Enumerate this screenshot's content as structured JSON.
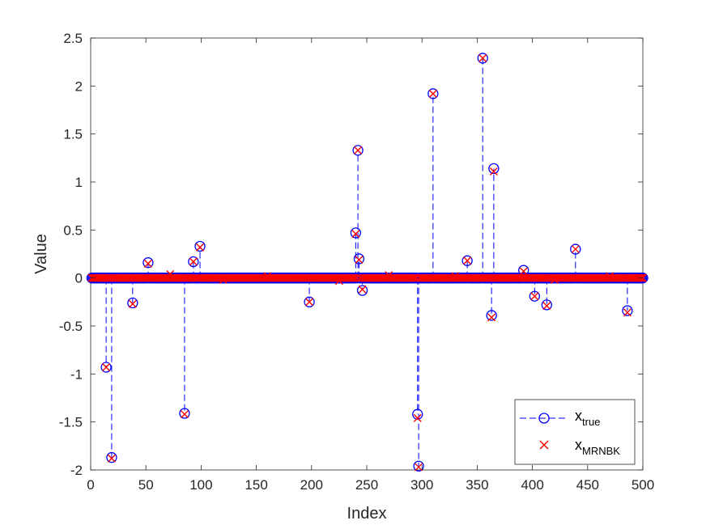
{
  "chart_data": {
    "type": "stem",
    "xlabel": "Index",
    "ylabel": "Value",
    "xlim": [
      0,
      500
    ],
    "ylim": [
      -2,
      2.5
    ],
    "xticks": [
      "0",
      "50",
      "100",
      "150",
      "200",
      "250",
      "300",
      "350",
      "400",
      "450",
      "500"
    ],
    "yticks": [
      "-2",
      "-1.5",
      "-1",
      "-0.5",
      "0",
      "0.5",
      "1",
      "1.5",
      "2",
      "2.5"
    ],
    "n_points": 500,
    "grid": false,
    "legend_position": "bottom-right",
    "colors": {
      "true": "#0000ff",
      "recovered": "#ff0000",
      "axis": "#262626"
    },
    "series": [
      {
        "name_main": "x",
        "name_sub": "true",
        "marker": "circle",
        "line": "dashed stem",
        "nonzeros": [
          [
            14,
            -0.93
          ],
          [
            19,
            -1.87
          ],
          [
            38,
            -0.26
          ],
          [
            52,
            0.16
          ],
          [
            85,
            -1.41
          ],
          [
            93,
            0.17
          ],
          [
            99,
            0.33
          ],
          [
            198,
            -0.25
          ],
          [
            240,
            0.47
          ],
          [
            242,
            1.33
          ],
          [
            243,
            0.2
          ],
          [
            246,
            -0.13
          ],
          [
            296,
            -1.42
          ],
          [
            297,
            -1.96
          ],
          [
            310,
            1.92
          ],
          [
            341,
            0.18
          ],
          [
            355,
            2.29
          ],
          [
            363,
            -0.39
          ],
          [
            365,
            1.14
          ],
          [
            392,
            0.08
          ],
          [
            402,
            -0.19
          ],
          [
            413,
            -0.28
          ],
          [
            439,
            0.3
          ],
          [
            486,
            -0.34
          ]
        ]
      },
      {
        "name_main": "x",
        "name_sub": "MRNBK",
        "marker": "x",
        "line": "none",
        "nonzeros": [
          [
            14,
            -0.93
          ],
          [
            19,
            -1.88
          ],
          [
            38,
            -0.27
          ],
          [
            52,
            0.15
          ],
          [
            85,
            -1.42
          ],
          [
            93,
            0.17
          ],
          [
            99,
            0.32
          ],
          [
            198,
            -0.25
          ],
          [
            240,
            0.46
          ],
          [
            242,
            1.33
          ],
          [
            243,
            0.19
          ],
          [
            246,
            -0.12
          ],
          [
            296,
            -1.46
          ],
          [
            297,
            -1.97
          ],
          [
            310,
            1.92
          ],
          [
            341,
            0.18
          ],
          [
            355,
            2.29
          ],
          [
            363,
            -0.41
          ],
          [
            365,
            1.11
          ],
          [
            392,
            0.07
          ],
          [
            402,
            -0.19
          ],
          [
            413,
            -0.29
          ],
          [
            439,
            0.3
          ],
          [
            486,
            -0.36
          ],
          [
            72,
            0.04
          ],
          [
            120,
            -0.02
          ],
          [
            160,
            0.02
          ],
          [
            225,
            -0.03
          ],
          [
            270,
            0.03
          ],
          [
            330,
            0.02
          ],
          [
            420,
            -0.02
          ],
          [
            470,
            0.02
          ]
        ]
      }
    ]
  }
}
